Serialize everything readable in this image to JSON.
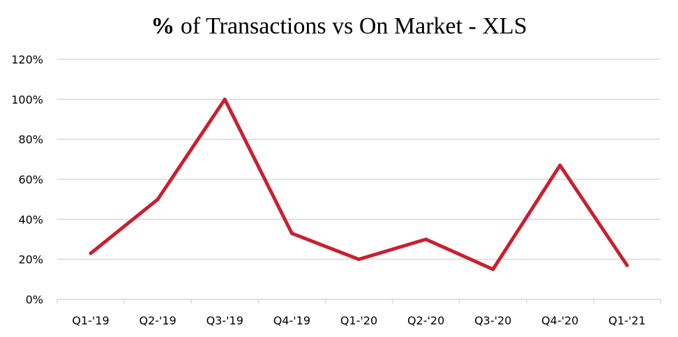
{
  "chart_data": {
    "type": "line",
    "title": {
      "bold_part": "%",
      "rest": " of Transactions vs On Market - XLS"
    },
    "xlabel": "",
    "ylabel": "",
    "categories": [
      "Q1-'19",
      "Q2-'19",
      "Q3-'19",
      "Q4-'19",
      "Q1-'20",
      "Q2-'20",
      "Q3-'20",
      "Q4-'20",
      "Q1-'21"
    ],
    "series": [
      {
        "values": [
          23,
          50,
          100,
          33,
          20,
          30,
          15,
          67,
          17
        ],
        "color": "#c8202f"
      }
    ],
    "ylim": [
      0,
      120
    ],
    "yticks": [
      0,
      20,
      40,
      60,
      80,
      100,
      120
    ],
    "ytick_labels": [
      "0%",
      "20%",
      "40%",
      "60%",
      "80%",
      "100%",
      "120%"
    ],
    "grid": true,
    "legend": "none"
  }
}
